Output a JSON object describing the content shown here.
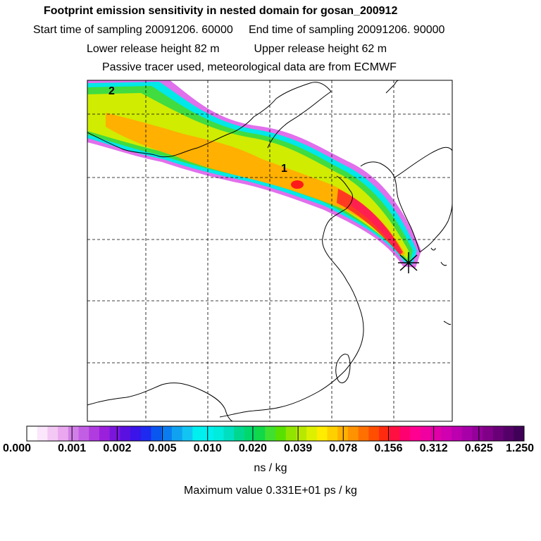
{
  "header": {
    "title": "Footprint emission sensitivity in nested domain for gosan_200912",
    "start_label": "Start time of sampling 20091206. 60000",
    "end_label": "End time of sampling 20091206. 90000",
    "lower_label": "Lower release height   82 m",
    "upper_label": "Upper release height   62 m",
    "note": "Passive tracer used, meteorological data are from ECMWF"
  },
  "map": {
    "label_1": "1",
    "label_2": "2",
    "receptor": "gosan"
  },
  "colorbar": {
    "ticks": [
      "0.000",
      "0.001",
      "0.002",
      "0.005",
      "0.010",
      "0.020",
      "0.039",
      "0.078",
      "0.156",
      "0.312",
      "0.625",
      "1.250"
    ],
    "colors": [
      "#ffffff",
      "#fbe6fb",
      "#f3c8f4",
      "#eaa8ef",
      "#d27ee8",
      "#c25ee4",
      "#b03ce0",
      "#9a20dc",
      "#7a16dc",
      "#5a10e0",
      "#3a14e8",
      "#1e2af0",
      "#0a56f0",
      "#0a7cf0",
      "#10a2f0",
      "#12c4f2",
      "#00f0f0",
      "#00f0f0",
      "#00ecdc",
      "#00e0c0",
      "#00d890",
      "#00d86c",
      "#10d848",
      "#40e030",
      "#58e000",
      "#90e400",
      "#b8e800",
      "#dcf000",
      "#ffec00",
      "#ffd000",
      "#ffb000",
      "#ff9200",
      "#ff7000",
      "#ff4e00",
      "#ff2a10",
      "#ff1040",
      "#ff0070",
      "#ff0090",
      "#f000a0",
      "#e000a8",
      "#d000b0",
      "#bc00b0",
      "#a800a8",
      "#94009a",
      "#800088",
      "#6a0078",
      "#540068",
      "#400058"
    ],
    "unit": "ns / kg",
    "max_label": "Maximum value  0.331E+01 ps / kg"
  }
}
